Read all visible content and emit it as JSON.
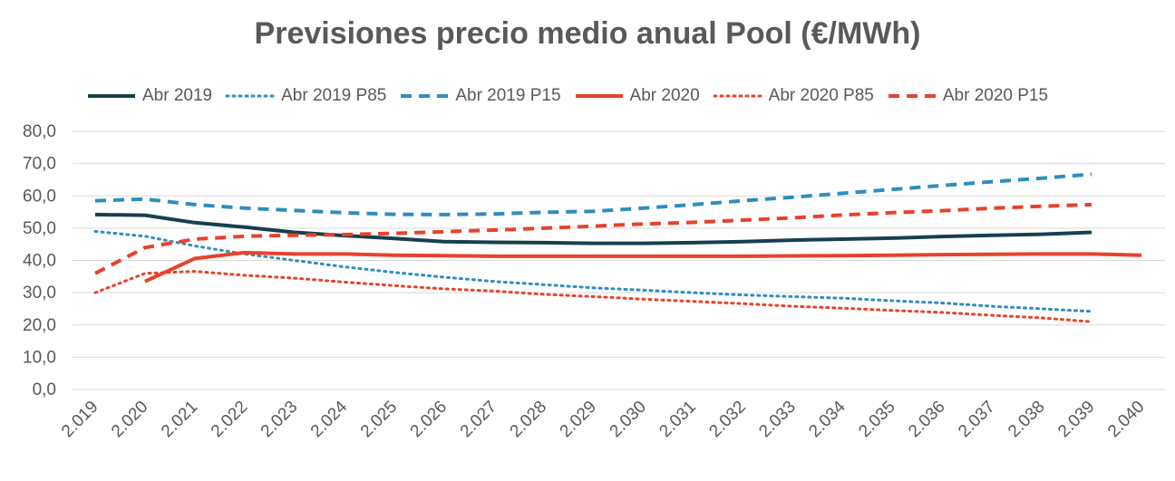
{
  "chart_data": {
    "type": "line",
    "title": "Previsiones precio medio anual Pool (€/MWh)",
    "xlabel": "",
    "ylabel": "",
    "categories": [
      "2.019",
      "2.020",
      "2.021",
      "2.022",
      "2.023",
      "2.024",
      "2.025",
      "2.026",
      "2.027",
      "2.028",
      "2.029",
      "2.030",
      "2.031",
      "2.032",
      "2.033",
      "2.034",
      "2.035",
      "2.036",
      "2.037",
      "2.038",
      "2.039",
      "2.040"
    ],
    "y_ticks": [
      "0,0",
      "10,0",
      "20,0",
      "30,0",
      "40,0",
      "50,0",
      "60,0",
      "70,0",
      "80,0"
    ],
    "ylim": [
      0,
      80
    ],
    "grid": true,
    "legend_position": "top",
    "series": [
      {
        "name": "Abr 2019",
        "color": "#17404f",
        "style": "solid",
        "values": [
          54.2,
          54.0,
          51.7,
          50.3,
          48.7,
          47.7,
          46.8,
          45.8,
          45.6,
          45.5,
          45.3,
          45.3,
          45.5,
          45.8,
          46.3,
          46.6,
          46.9,
          47.4,
          47.8,
          48.1,
          48.7,
          null
        ]
      },
      {
        "name": "Abr 2019 P85",
        "color": "#2e8dbf",
        "style": "dotted",
        "values": [
          49.0,
          47.5,
          44.5,
          42.0,
          40.0,
          38.0,
          36.3,
          34.8,
          33.5,
          32.5,
          31.5,
          30.8,
          30.0,
          29.3,
          28.8,
          28.3,
          27.5,
          26.8,
          25.8,
          25.0,
          24.2,
          null
        ]
      },
      {
        "name": "Abr 2019 P15",
        "color": "#2e8dbf",
        "style": "dashed",
        "values": [
          58.5,
          59.0,
          57.3,
          56.2,
          55.5,
          54.8,
          54.3,
          54.2,
          54.4,
          54.9,
          55.2,
          56.2,
          57.3,
          58.5,
          59.6,
          60.8,
          62.0,
          63.2,
          64.4,
          65.5,
          66.7,
          null
        ]
      },
      {
        "name": "Abr 2020",
        "color": "#e8412b",
        "style": "solid",
        "values": [
          null,
          33.5,
          40.6,
          42.4,
          42.0,
          42.0,
          41.6,
          41.5,
          41.3,
          41.3,
          41.3,
          41.3,
          41.3,
          41.3,
          41.4,
          41.5,
          41.6,
          41.8,
          41.9,
          42.0,
          42.0,
          41.6
        ]
      },
      {
        "name": "Abr 2020 P85",
        "color": "#e8412b",
        "style": "dotted",
        "values": [
          30.0,
          36.0,
          36.6,
          35.4,
          34.5,
          33.3,
          32.2,
          31.2,
          30.5,
          29.5,
          28.8,
          28.0,
          27.3,
          26.6,
          25.8,
          25.2,
          24.5,
          23.9,
          23.0,
          22.2,
          21.0,
          null
        ]
      },
      {
        "name": "Abr 2020 P15",
        "color": "#e8412b",
        "style": "dashed",
        "values": [
          36.0,
          44.0,
          46.6,
          47.5,
          47.8,
          48.0,
          48.4,
          48.9,
          49.4,
          50.0,
          50.6,
          51.3,
          51.8,
          52.5,
          53.2,
          54.1,
          54.8,
          55.4,
          56.2,
          56.8,
          57.3,
          null
        ]
      }
    ]
  }
}
